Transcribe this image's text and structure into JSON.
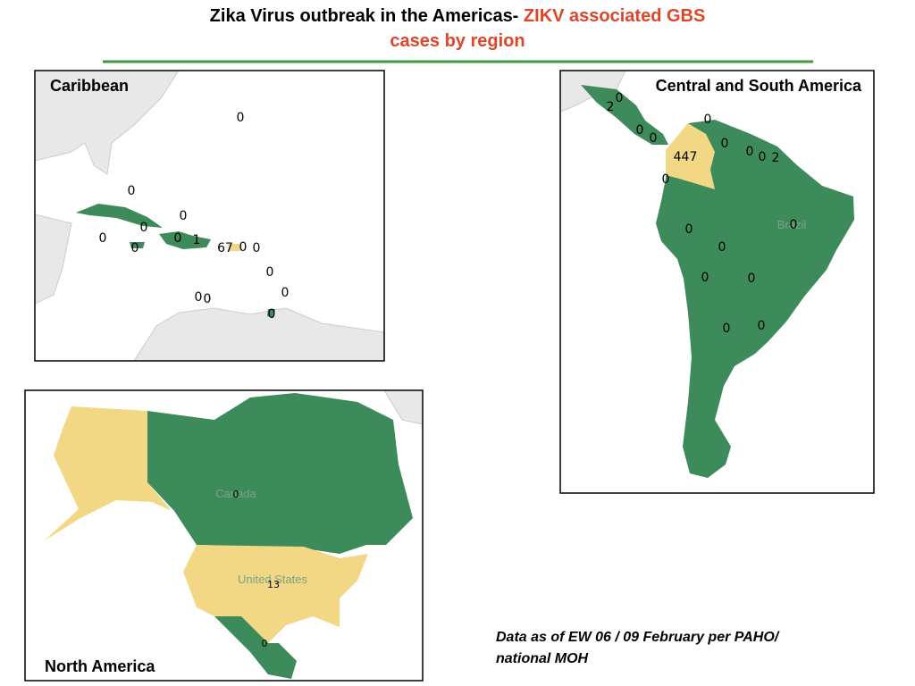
{
  "header": {
    "title_black": "Zika Virus outbreak in the Americas-",
    "title_red_line1": "ZIKV associated GBS",
    "title_red_line2": "cases by region"
  },
  "panels": [
    {
      "title": "Caribbean",
      "labels": [
        0,
        0,
        0,
        0,
        0,
        0,
        0,
        1,
        67,
        0,
        0,
        0,
        0,
        0,
        0,
        0
      ]
    },
    {
      "title": "Central and South America",
      "labels": [
        2,
        0,
        0,
        0,
        0,
        0,
        447,
        0,
        0,
        2,
        0,
        0,
        0,
        0,
        0,
        0,
        0,
        0
      ],
      "country_labels": [
        "Brazil"
      ]
    },
    {
      "title": "North America",
      "labels": [
        0,
        13,
        0
      ],
      "country_labels": [
        "Canada",
        "United States"
      ]
    }
  ],
  "footnote": [
    "Data as of EW 06 / 09 February per PAHO/",
    "national MOH"
  ]
}
